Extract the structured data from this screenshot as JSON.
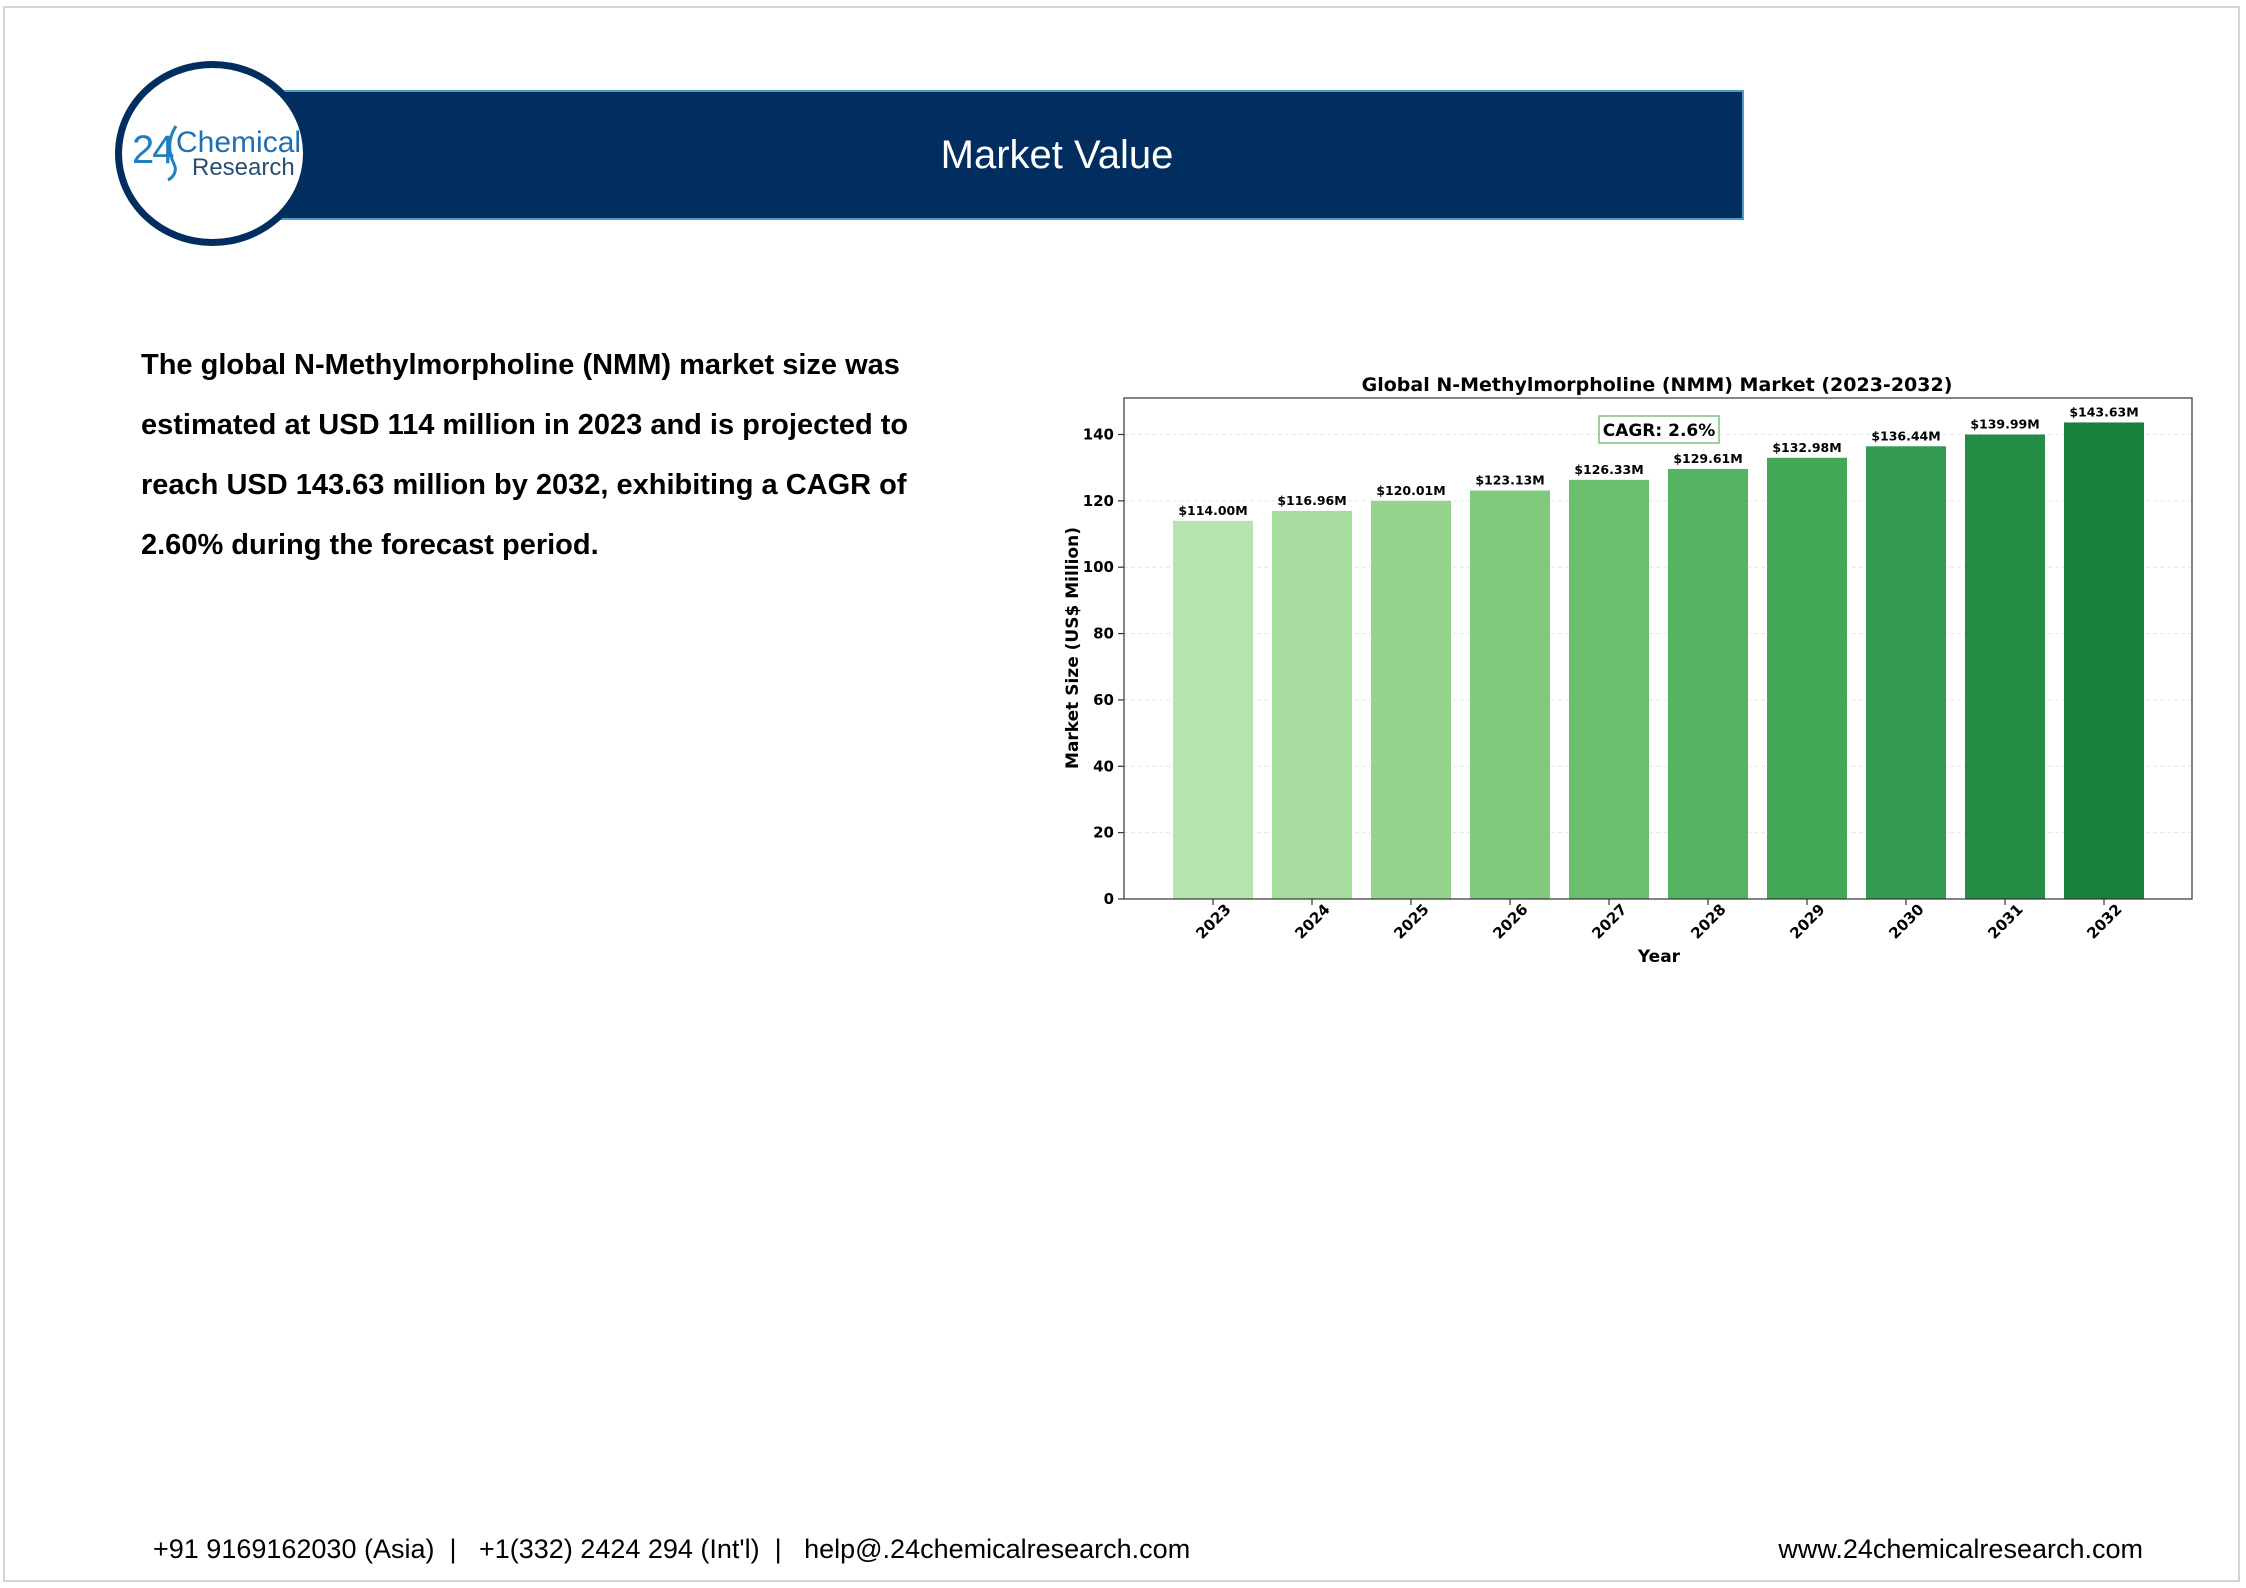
{
  "header": {
    "title": "Market Value"
  },
  "logo": {
    "number": "24",
    "word1": "Chemical",
    "word2": "Research"
  },
  "intro_text": "The global N-Methylmorpholine (NMM) market size was estimated at USD 114 million in 2023 and is projected to reach USD 143.63 million by 2032, exhibiting a CAGR of 2.60% during the forecast period.",
  "chart_data": {
    "type": "bar",
    "title": "Global N-Methylmorpholine (NMM) Market (2023-2032)",
    "xlabel": "Year",
    "ylabel": "Market Size (US$ Million)",
    "categories": [
      "2023",
      "2024",
      "2025",
      "2026",
      "2027",
      "2028",
      "2029",
      "2030",
      "2031",
      "2032"
    ],
    "values": [
      114.0,
      116.96,
      120.01,
      123.13,
      126.33,
      129.61,
      132.98,
      136.44,
      139.99,
      143.63
    ],
    "data_labels": [
      "$114.00M",
      "$116.96M",
      "$120.01M",
      "$123.13M",
      "$126.33M",
      "$129.61M",
      "$132.98M",
      "$136.44M",
      "$139.99M",
      "$143.63M"
    ],
    "ylim": [
      0,
      151
    ],
    "yticks": [
      0,
      20,
      40,
      60,
      80,
      100,
      120,
      140
    ],
    "annotation": "CAGR: 2.6%",
    "grid": true,
    "bar_colors": [
      "#b7e3b0",
      "#a6dc9e",
      "#95d38e",
      "#80c97d",
      "#6bbf6f",
      "#55b463",
      "#43a758",
      "#339b4f",
      "#238c45",
      "#17803d"
    ]
  },
  "footer": {
    "contact": "+91 9169162030 (Asia)  |   +1(332) 2424 294 (Int'l)  |   help@.24chemicalresearch.com",
    "website": "www.24chemicalresearch.com"
  }
}
